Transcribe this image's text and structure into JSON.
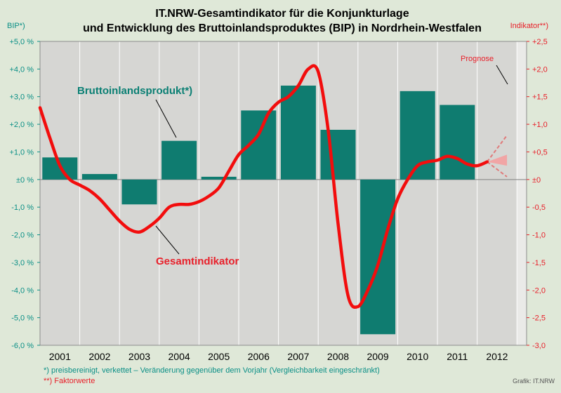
{
  "title_line1": "IT.NRW-Gesamtindikator für die Konjunkturlage",
  "title_line2": "und Entwicklung des Bruttoinlandsproduktes (BIP) in Nordrhein-Westfalen",
  "left_axis_title": "BIP*)",
  "right_axis_title": "Indikator**)",
  "footnote1": "*) preisbereinigt,   verkettet – Veränderung gegenüber dem Vorjahr (Vergleichbarkeit  eingeschränkt)",
  "footnote2": "**) Faktorwerte",
  "credit": "Grafik: IT.NRW",
  "colors": {
    "bar": "#0f7c70",
    "line": "#f20d0d",
    "left_axis": "#0a8f86",
    "right_axis": "#e8202a",
    "plot_bg": "#d6d6d3",
    "forecast_bg": "#eaeae8",
    "page_bg": "#dfe8d8"
  },
  "chart_data": {
    "type": "bar",
    "categories": [
      "2001",
      "2002",
      "2003",
      "2004",
      "2005",
      "2006",
      "2007",
      "2008",
      "2009",
      "2010",
      "2011",
      "2012"
    ],
    "series": [
      {
        "name": "Bruttoinlandsprodukt*)",
        "axis": "left",
        "type": "bar",
        "values": [
          0.8,
          0.2,
          -0.9,
          1.4,
          0.1,
          2.5,
          3.4,
          1.8,
          -5.6,
          3.2,
          2.7,
          null
        ]
      },
      {
        "name": "Gesamtindikator",
        "axis": "right",
        "type": "line",
        "points": [
          [
            2001.0,
            1.3
          ],
          [
            2001.25,
            0.75
          ],
          [
            2001.5,
            0.25
          ],
          [
            2001.75,
            0.0
          ],
          [
            2002.0,
            -0.1
          ],
          [
            2002.25,
            -0.2
          ],
          [
            2002.5,
            -0.35
          ],
          [
            2002.75,
            -0.55
          ],
          [
            2003.0,
            -0.75
          ],
          [
            2003.25,
            -0.9
          ],
          [
            2003.5,
            -0.95
          ],
          [
            2003.75,
            -0.85
          ],
          [
            2004.0,
            -0.7
          ],
          [
            2004.25,
            -0.5
          ],
          [
            2004.5,
            -0.45
          ],
          [
            2004.75,
            -0.45
          ],
          [
            2005.0,
            -0.4
          ],
          [
            2005.25,
            -0.3
          ],
          [
            2005.5,
            -0.15
          ],
          [
            2005.75,
            0.15
          ],
          [
            2006.0,
            0.45
          ],
          [
            2006.25,
            0.62
          ],
          [
            2006.5,
            0.82
          ],
          [
            2006.75,
            1.2
          ],
          [
            2007.0,
            1.4
          ],
          [
            2007.25,
            1.5
          ],
          [
            2007.5,
            1.7
          ],
          [
            2007.75,
            2.0
          ],
          [
            2008.0,
            1.95
          ],
          [
            2008.25,
            0.9
          ],
          [
            2008.5,
            -0.8
          ],
          [
            2008.75,
            -2.1
          ],
          [
            2009.0,
            -2.3
          ],
          [
            2009.25,
            -2.0
          ],
          [
            2009.5,
            -1.55
          ],
          [
            2009.75,
            -0.9
          ],
          [
            2010.0,
            -0.35
          ],
          [
            2010.25,
            0.0
          ],
          [
            2010.5,
            0.25
          ],
          [
            2010.75,
            0.32
          ],
          [
            2011.0,
            0.35
          ],
          [
            2011.25,
            0.42
          ],
          [
            2011.5,
            0.38
          ],
          [
            2011.75,
            0.28
          ],
          [
            2012.0,
            0.25
          ],
          [
            2012.25,
            0.32
          ]
        ]
      }
    ],
    "forecast": {
      "label": "Prognose",
      "start": [
        2012.25,
        0.32
      ],
      "band_upper": [
        2012.75,
        0.45
      ],
      "band_lower": [
        2012.75,
        0.25
      ],
      "dashed_upper": [
        2012.75,
        0.8
      ],
      "dashed_lower": [
        2012.75,
        0.05
      ]
    },
    "annotations": [
      {
        "text": "Bruttoinlandsprodukt*)",
        "color": "#0a7f73"
      },
      {
        "text": "Gesamtindikator",
        "color": "#e8202a"
      },
      {
        "text": "Prognose",
        "color": "#e8202a"
      }
    ],
    "left_axis": {
      "min": -6,
      "max": 5,
      "step": 1,
      "tick_labels": [
        "+5,0 %",
        "+4,0 %",
        "+3,0 %",
        "+2,0 %",
        "+1,0 %",
        "±0 %",
        "-1,0 %",
        "-2,0 %",
        "-3,0 %",
        "-4,0 %",
        "-5,0 %",
        "-6,0 %"
      ]
    },
    "right_axis": {
      "min": -3,
      "max": 2.5,
      "step": 0.5,
      "tick_labels": [
        "+2,5",
        "+2,0",
        "+1,5",
        "+1,0",
        "+0,5",
        "±0",
        "-0,5",
        "-1,0",
        "-1,5",
        "-2,0",
        "-2,5",
        "-3,0"
      ]
    },
    "grid": "vertical",
    "legend": "none"
  }
}
